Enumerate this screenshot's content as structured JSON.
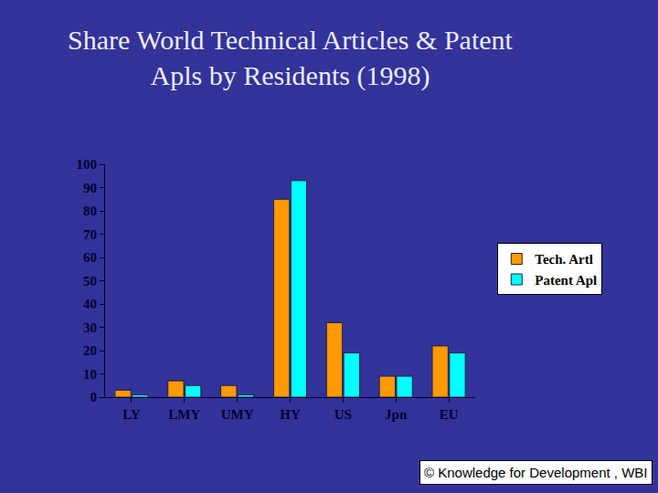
{
  "chart_data": {
    "type": "bar",
    "title": "Share World Technical Articles & Patent\nApls by Residents (1998)",
    "categories": [
      "LY",
      "LMY",
      "UMY",
      "HY",
      "US",
      "Jpn",
      "EU"
    ],
    "series": [
      {
        "name": "Tech. Artl",
        "color": "#ff9900",
        "values": [
          3,
          7,
          5,
          85,
          32,
          9,
          22
        ]
      },
      {
        "name": "Patent Apl",
        "color": "#00ffff",
        "values": [
          1,
          5,
          1,
          93,
          19,
          9,
          19
        ]
      }
    ],
    "ylim": [
      0,
      100
    ],
    "yticks": [
      0,
      10,
      20,
      30,
      40,
      50,
      60,
      70,
      80,
      90,
      100
    ],
    "grid": false,
    "legend": "right",
    "annotations": [
      "© Knowledge for Development , WBI"
    ]
  }
}
